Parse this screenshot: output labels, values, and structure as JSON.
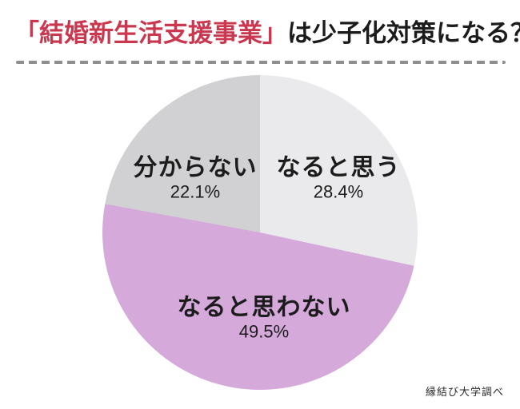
{
  "page": {
    "title": {
      "highlight": "「結婚新生活支援事業」",
      "rest": "は少子化対策になる？",
      "highlight_color": "#c9384f",
      "text_color": "#1b1b1b"
    },
    "divider_color": "#8f8f8f",
    "source_note": "縁結び大学調べ"
  },
  "chart_data": {
    "type": "pie",
    "title": "「結婚新生活支援事業」は少子化対策になる？",
    "start_angle_deg": 0,
    "direction": "clockwise",
    "legend_position": "labels-inside-slices",
    "categories": [
      "なると思う",
      "なると思わない",
      "分からない"
    ],
    "values": [
      28.4,
      49.5,
      22.1
    ],
    "segments": [
      {
        "label": "なると思う",
        "value": 28.4,
        "display": "28.4%",
        "color": "#eaeaec"
      },
      {
        "label": "なると思わない",
        "value": 49.5,
        "display": "49.5%",
        "color": "#d5aadb"
      },
      {
        "label": "分からない",
        "value": 22.1,
        "display": "22.1%",
        "color": "#d1d1d3"
      }
    ],
    "source": "縁結び大学調べ"
  }
}
